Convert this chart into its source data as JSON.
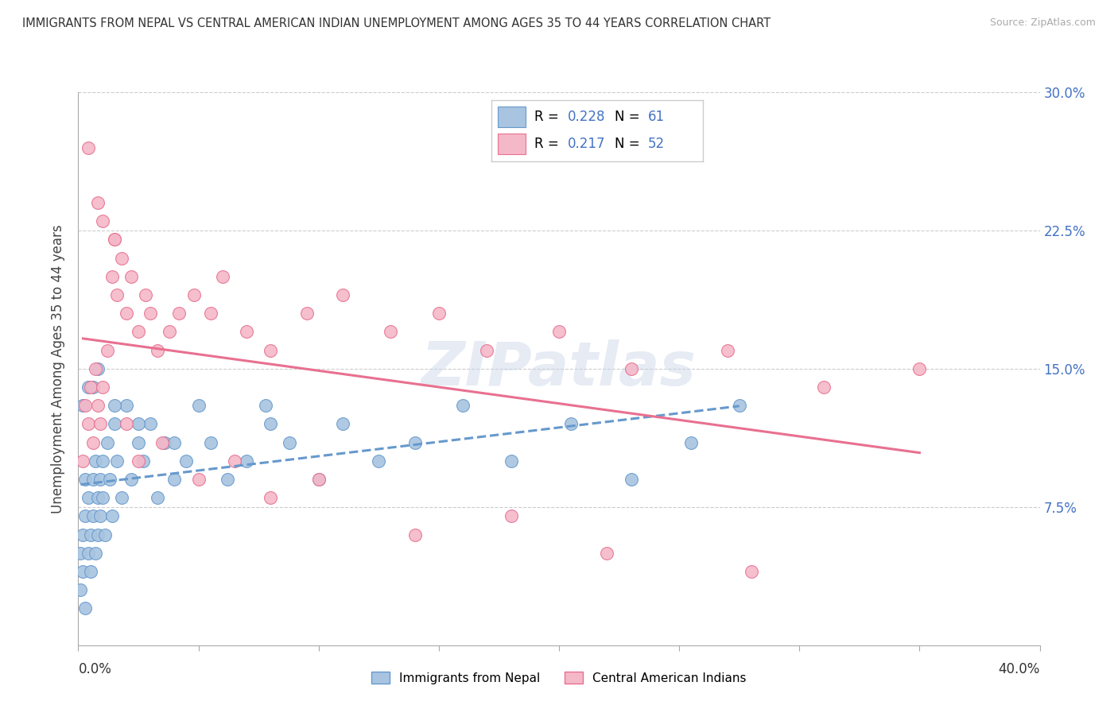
{
  "title": "IMMIGRANTS FROM NEPAL VS CENTRAL AMERICAN INDIAN UNEMPLOYMENT AMONG AGES 35 TO 44 YEARS CORRELATION CHART",
  "source": "Source: ZipAtlas.com",
  "ylabel": "Unemployment Among Ages 35 to 44 years",
  "series1_label": "Immigrants from Nepal",
  "series1_color": "#a8c4e0",
  "series1_edge": "#6699cc",
  "series1_R": 0.228,
  "series1_N": 61,
  "series2_label": "Central American Indians",
  "series2_color": "#f4b8c8",
  "series2_edge": "#e87090",
  "series2_R": 0.217,
  "series2_N": 52,
  "legend_color": "#4472c4",
  "xlim": [
    0.0,
    0.4
  ],
  "ylim": [
    0.0,
    0.3
  ],
  "nepal_x": [
    0.001,
    0.001,
    0.002,
    0.002,
    0.003,
    0.003,
    0.003,
    0.004,
    0.004,
    0.005,
    0.005,
    0.006,
    0.006,
    0.007,
    0.007,
    0.008,
    0.008,
    0.009,
    0.009,
    0.01,
    0.01,
    0.011,
    0.012,
    0.013,
    0.014,
    0.015,
    0.016,
    0.018,
    0.02,
    0.022,
    0.025,
    0.027,
    0.03,
    0.033,
    0.036,
    0.04,
    0.045,
    0.05,
    0.055,
    0.062,
    0.07,
    0.078,
    0.088,
    0.1,
    0.11,
    0.125,
    0.14,
    0.16,
    0.18,
    0.205,
    0.23,
    0.255,
    0.275,
    0.002,
    0.004,
    0.006,
    0.008,
    0.015,
    0.025,
    0.04,
    0.08
  ],
  "nepal_y": [
    0.05,
    0.03,
    0.04,
    0.06,
    0.02,
    0.07,
    0.09,
    0.05,
    0.08,
    0.04,
    0.06,
    0.07,
    0.09,
    0.05,
    0.1,
    0.06,
    0.08,
    0.07,
    0.09,
    0.1,
    0.08,
    0.06,
    0.11,
    0.09,
    0.07,
    0.12,
    0.1,
    0.08,
    0.13,
    0.09,
    0.11,
    0.1,
    0.12,
    0.08,
    0.11,
    0.09,
    0.1,
    0.13,
    0.11,
    0.09,
    0.1,
    0.13,
    0.11,
    0.09,
    0.12,
    0.1,
    0.11,
    0.13,
    0.1,
    0.12,
    0.09,
    0.11,
    0.13,
    0.13,
    0.14,
    0.14,
    0.15,
    0.13,
    0.12,
    0.11,
    0.12
  ],
  "central_x": [
    0.002,
    0.003,
    0.004,
    0.005,
    0.006,
    0.007,
    0.008,
    0.009,
    0.01,
    0.012,
    0.014,
    0.015,
    0.016,
    0.018,
    0.02,
    0.022,
    0.025,
    0.028,
    0.03,
    0.033,
    0.038,
    0.042,
    0.048,
    0.055,
    0.06,
    0.07,
    0.08,
    0.095,
    0.11,
    0.13,
    0.15,
    0.17,
    0.2,
    0.23,
    0.27,
    0.31,
    0.35,
    0.004,
    0.008,
    0.01,
    0.015,
    0.02,
    0.025,
    0.035,
    0.05,
    0.065,
    0.08,
    0.1,
    0.14,
    0.18,
    0.22,
    0.28
  ],
  "central_y": [
    0.1,
    0.13,
    0.12,
    0.14,
    0.11,
    0.15,
    0.13,
    0.12,
    0.14,
    0.16,
    0.2,
    0.22,
    0.19,
    0.21,
    0.18,
    0.2,
    0.17,
    0.19,
    0.18,
    0.16,
    0.17,
    0.18,
    0.19,
    0.18,
    0.2,
    0.17,
    0.16,
    0.18,
    0.19,
    0.17,
    0.18,
    0.16,
    0.17,
    0.15,
    0.16,
    0.14,
    0.15,
    0.27,
    0.24,
    0.23,
    0.22,
    0.12,
    0.1,
    0.11,
    0.09,
    0.1,
    0.08,
    0.09,
    0.06,
    0.07,
    0.05,
    0.04
  ]
}
